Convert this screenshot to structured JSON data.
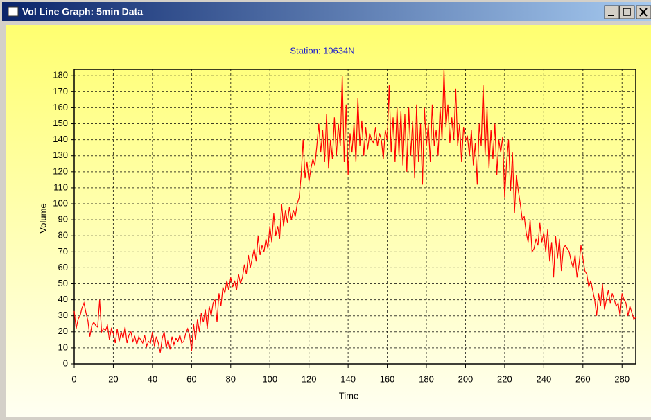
{
  "window": {
    "title": "Vol Line Graph: 5min Data"
  },
  "chart_data": {
    "type": "line",
    "title": "Station:  10634N",
    "x_label": "Time",
    "y_label": "Volume",
    "color": "#ff0000",
    "grid": true,
    "xlim": [
      0,
      287
    ],
    "xticks": [
      0,
      20,
      40,
      60,
      80,
      100,
      120,
      140,
      160,
      180,
      200,
      220,
      240,
      260,
      280
    ],
    "ylim": [
      0,
      184
    ],
    "yticks": [
      0,
      10,
      20,
      30,
      40,
      50,
      60,
      70,
      80,
      90,
      100,
      110,
      120,
      130,
      140,
      150,
      160,
      170,
      180
    ],
    "x": [
      0,
      1,
      2,
      3,
      4,
      5,
      6,
      7,
      8,
      9,
      10,
      11,
      12,
      13,
      14,
      15,
      16,
      17,
      18,
      19,
      20,
      21,
      22,
      23,
      24,
      25,
      26,
      27,
      28,
      29,
      30,
      31,
      32,
      33,
      34,
      35,
      36,
      37,
      38,
      39,
      40,
      41,
      42,
      43,
      44,
      45,
      46,
      47,
      48,
      49,
      50,
      51,
      52,
      53,
      54,
      55,
      56,
      57,
      58,
      59,
      60,
      61,
      62,
      63,
      64,
      65,
      66,
      67,
      68,
      69,
      70,
      71,
      72,
      73,
      74,
      75,
      76,
      77,
      78,
      79,
      80,
      81,
      82,
      83,
      84,
      85,
      86,
      87,
      88,
      89,
      90,
      91,
      92,
      93,
      94,
      95,
      96,
      97,
      98,
      99,
      100,
      101,
      102,
      103,
      104,
      105,
      106,
      107,
      108,
      109,
      110,
      111,
      112,
      113,
      114,
      115,
      116,
      117,
      118,
      119,
      120,
      121,
      122,
      123,
      124,
      125,
      126,
      127,
      128,
      129,
      130,
      131,
      132,
      133,
      134,
      135,
      136,
      137,
      138,
      139,
      140,
      141,
      142,
      143,
      144,
      145,
      146,
      147,
      148,
      149,
      150,
      151,
      152,
      153,
      154,
      155,
      156,
      157,
      158,
      159,
      160,
      161,
      162,
      163,
      164,
      165,
      166,
      167,
      168,
      169,
      170,
      171,
      172,
      173,
      174,
      175,
      176,
      177,
      178,
      179,
      180,
      181,
      182,
      183,
      184,
      185,
      186,
      187,
      188,
      189,
      190,
      191,
      192,
      193,
      194,
      195,
      196,
      197,
      198,
      199,
      200,
      201,
      202,
      203,
      204,
      205,
      206,
      207,
      208,
      209,
      210,
      211,
      212,
      213,
      214,
      215,
      216,
      217,
      218,
      219,
      220,
      221,
      222,
      223,
      224,
      225,
      226,
      227,
      228,
      229,
      230,
      231,
      232,
      233,
      234,
      235,
      236,
      237,
      238,
      239,
      240,
      241,
      242,
      243,
      244,
      245,
      246,
      247,
      248,
      249,
      250,
      251,
      252,
      253,
      254,
      255,
      256,
      257,
      258,
      259,
      260,
      261,
      262,
      263,
      264,
      265,
      266,
      267,
      268,
      269,
      270,
      271,
      272,
      273,
      274,
      275,
      276,
      277,
      278,
      279,
      280,
      281,
      282,
      283,
      284,
      285,
      286,
      287
    ],
    "values": [
      33,
      22,
      28,
      30,
      35,
      38,
      32,
      27,
      17,
      24,
      26,
      24,
      23,
      40,
      20,
      22,
      21,
      24,
      15,
      22,
      19,
      13,
      22,
      14,
      20,
      16,
      23,
      13,
      18,
      20,
      14,
      17,
      12,
      17,
      15,
      13,
      18,
      11,
      14,
      13,
      20,
      11,
      17,
      13,
      7,
      16,
      20,
      10,
      15,
      9,
      17,
      12,
      16,
      14,
      18,
      13,
      14,
      19,
      22,
      18,
      8,
      25,
      15,
      28,
      20,
      32,
      26,
      34,
      22,
      36,
      30,
      38,
      40,
      26,
      44,
      36,
      48,
      44,
      52,
      46,
      54,
      48,
      52,
      46,
      56,
      50,
      54,
      62,
      56,
      68,
      60,
      66,
      72,
      64,
      80,
      68,
      74,
      70,
      78,
      72,
      86,
      76,
      94,
      80,
      86,
      78,
      100,
      86,
      96,
      88,
      98,
      90,
      96,
      92,
      100,
      104,
      118,
      140,
      116,
      126,
      114,
      122,
      128,
      124,
      136,
      150,
      132,
      146,
      126,
      156,
      122,
      140,
      128,
      154,
      130,
      150,
      136,
      180,
      126,
      162,
      118,
      144,
      132,
      150,
      126,
      166,
      136,
      152,
      130,
      148,
      134,
      144,
      140,
      138,
      148,
      136,
      144,
      140,
      128,
      146,
      140,
      174,
      132,
      154,
      126,
      160,
      130,
      158,
      124,
      156,
      120,
      160,
      130,
      152,
      116,
      162,
      126,
      150,
      112,
      160,
      136,
      150,
      126,
      162,
      136,
      146,
      130,
      160,
      140,
      184,
      148,
      162,
      138,
      154,
      140,
      172,
      136,
      150,
      126,
      148,
      140,
      142,
      130,
      146,
      124,
      138,
      112,
      150,
      136,
      174,
      130,
      160,
      122,
      146,
      128,
      150,
      118,
      140,
      132,
      142,
      104,
      126,
      140,
      108,
      132,
      94,
      118,
      108,
      100,
      90,
      92,
      82,
      76,
      90,
      70,
      72,
      78,
      74,
      88,
      76,
      82,
      70,
      84,
      64,
      76,
      54,
      80,
      66,
      78,
      58,
      72,
      74,
      72,
      70,
      64,
      60,
      68,
      54,
      62,
      74,
      66,
      58,
      56,
      48,
      52,
      46,
      40,
      30,
      44,
      36,
      50,
      34,
      40,
      46,
      38,
      44,
      40,
      36,
      38,
      30,
      44,
      40,
      38,
      30,
      36,
      32,
      28,
      29
    ]
  }
}
